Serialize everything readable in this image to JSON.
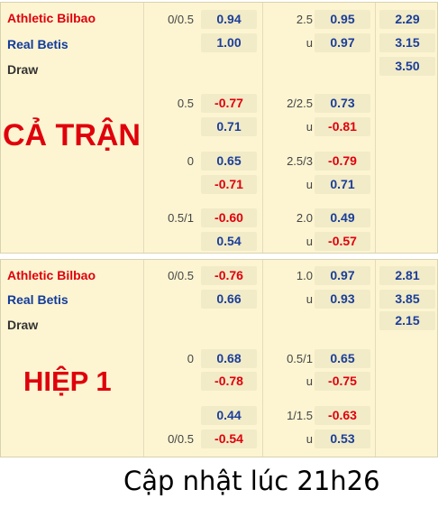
{
  "full_match": {
    "home": "Athletic Bilbao",
    "away": "Real Betis",
    "draw": "Draw",
    "banner": "CẢ TRẬN",
    "rows": [
      {
        "hcap": "0/0.5",
        "h1": "0.94",
        "ou": "2.5",
        "o1": "0.95",
        "x1": "2.29"
      },
      {
        "h2": "1.00",
        "ou2": "u",
        "o2": "0.97",
        "x2": "3.15"
      },
      {
        "x3": "3.50"
      }
    ],
    "alt": [
      {
        "hcap": "0.5",
        "h1": "-0.77",
        "h2": "0.71",
        "ou": "2/2.5",
        "o1": "0.73",
        "u": "u",
        "o2": "-0.81"
      },
      {
        "hcap": "0",
        "h1": "0.65",
        "h2": "-0.71",
        "ou": "2.5/3",
        "o1": "-0.79",
        "u": "u",
        "o2": "0.71"
      },
      {
        "hcap": "0.5/1",
        "h1": "-0.60",
        "h2": "0.54",
        "ou": "2.0",
        "o1": "0.49",
        "u": "u",
        "o2": "-0.57"
      }
    ]
  },
  "first_half": {
    "home": "Athletic Bilbao",
    "away": "Real Betis",
    "draw": "Draw",
    "banner": "HIỆP 1",
    "main": {
      "hcap": "0/0.5",
      "h1": "-0.76",
      "h2": "0.66",
      "ou": "1.0",
      "o1": "0.97",
      "u": "u",
      "o2": "0.93",
      "x1": "2.81",
      "x2": "3.85",
      "x3": "2.15"
    },
    "alt1": {
      "hcap": "0",
      "h1": "0.68",
      "h2": "-0.78",
      "ou": "0.5/1",
      "o1": "0.65",
      "u": "u",
      "o2": "-0.75"
    },
    "alt2": {
      "hcap": "0/0.5",
      "h1": "0.44",
      "h2": "-0.54",
      "ou": "1/1.5",
      "o1": "-0.63",
      "u": "u",
      "o2": "0.53"
    }
  },
  "update_text": "Cập nhật lúc 21h26"
}
